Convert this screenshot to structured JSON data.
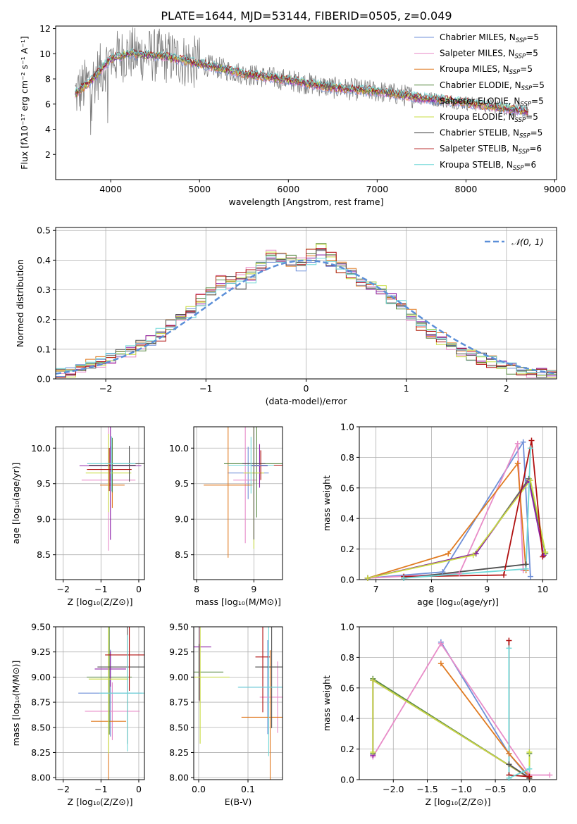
{
  "figure_title": "PLATE=1644, MJD=53144, FIBERID=0505, z=0.049",
  "colors": {
    "Chabrier MILES": "#6f8fd8",
    "Salpeter MILES": "#e88cc8",
    "Kroupa MILES": "#e07a20",
    "Chabrier ELODIE": "#5a8a44",
    "Salpeter ELODIE": "#8d20a8",
    "Kroupa ELODIE": "#c8dc40",
    "Chabrier STELIB": "#505050",
    "Salpeter STELIB": "#b01010",
    "Kroupa STELIB": "#70d8d8",
    "data": "#7f7f7f",
    "normal": "#5b8fd8"
  },
  "chart_data": [
    {
      "id": "spectrum",
      "type": "line",
      "xlabel": "wavelength [Angstrom, rest frame]",
      "ylabel": "Flux [fλ10⁻¹⁷ erg cm⁻² s⁻¹ A⁻¹]",
      "xlim": [
        3380,
        9020
      ],
      "ylim": [
        0.0,
        12.2
      ],
      "xticks": [
        4000,
        5000,
        6000,
        7000,
        8000,
        9000
      ],
      "yticks": [
        2,
        4,
        6,
        8,
        10,
        12
      ],
      "legend": [
        {
          "base": "Chabrier MILES, N",
          "sub": "SSP",
          "tail": "=5"
        },
        {
          "base": "Salpeter MILES, N",
          "sub": "SSP",
          "tail": "=5"
        },
        {
          "base": "Kroupa MILES, N",
          "sub": "SSP",
          "tail": "=5"
        },
        {
          "base": "Chabrier ELODIE, N",
          "sub": "SSP",
          "tail": "=5"
        },
        {
          "base": "Salpeter ELODIE, N",
          "sub": "SSP",
          "tail": "=5"
        },
        {
          "base": "Kroupa ELODIE, N",
          "sub": "SSP",
          "tail": "=5"
        },
        {
          "base": "Chabrier STELIB, N",
          "sub": "SSP",
          "tail": "=5"
        },
        {
          "base": "Salpeter STELIB, N",
          "sub": "SSP",
          "tail": "=6"
        },
        {
          "base": "Kroupa STELIB, N",
          "sub": "SSP",
          "tail": "=6"
        }
      ],
      "legend_position": "right",
      "continuum_x": [
        3600,
        3800,
        4000,
        4200,
        4400,
        4600,
        4800,
        5000,
        5200,
        5500,
        6000,
        6500,
        7000,
        7500,
        8000,
        8500,
        8700
      ],
      "continuum_y": [
        6.8,
        8.0,
        9.6,
        10.0,
        9.9,
        9.8,
        9.5,
        9.2,
        8.9,
        8.4,
        7.9,
        7.3,
        7.0,
        6.5,
        6.1,
        5.6,
        5.4
      ]
    },
    {
      "id": "residuals",
      "type": "bar",
      "xlabel": "(data-model)/error",
      "ylabel": "Normed distribution",
      "xlim": [
        -2.5,
        2.5
      ],
      "ylim": [
        0.0,
        0.51
      ],
      "xticks": [
        -2,
        -1,
        0,
        1,
        2
      ],
      "yticks": [
        0.0,
        0.1,
        0.2,
        0.3,
        0.4,
        0.5
      ],
      "legend": "𝒩(0, 1)",
      "legend_position": "upper right",
      "bin_width": 0.1,
      "bin_centers": [
        -2.45,
        -2.35,
        -2.25,
        -2.15,
        -2.05,
        -1.95,
        -1.85,
        -1.75,
        -1.65,
        -1.55,
        -1.45,
        -1.35,
        -1.25,
        -1.15,
        -1.05,
        -0.95,
        -0.85,
        -0.75,
        -0.65,
        -0.55,
        -0.45,
        -0.35,
        -0.25,
        -0.15,
        -0.05,
        0.05,
        0.15,
        0.25,
        0.35,
        0.45,
        0.55,
        0.65,
        0.75,
        0.85,
        0.95,
        1.05,
        1.15,
        1.25,
        1.35,
        1.45,
        1.55,
        1.65,
        1.75,
        1.85,
        1.95,
        2.05,
        2.15,
        2.25,
        2.35,
        2.45
      ],
      "series_values": [
        [
          0.02,
          0.03,
          0.04,
          0.05,
          0.06,
          0.07,
          0.09,
          0.1,
          0.12,
          0.13,
          0.16,
          0.19,
          0.21,
          0.22,
          0.25,
          0.29,
          0.31,
          0.33,
          0.32,
          0.34,
          0.38,
          0.4,
          0.41,
          0.39,
          0.38,
          0.4,
          0.42,
          0.39,
          0.38,
          0.36,
          0.33,
          0.31,
          0.29,
          0.27,
          0.25,
          0.22,
          0.19,
          0.16,
          0.14,
          0.12,
          0.1,
          0.08,
          0.07,
          0.06,
          0.05,
          0.04,
          0.03,
          0.03,
          0.02,
          0.02
        ],
        [
          0.01,
          0.02,
          0.03,
          0.04,
          0.05,
          0.06,
          0.08,
          0.09,
          0.11,
          0.12,
          0.14,
          0.18,
          0.2,
          0.24,
          0.27,
          0.3,
          0.34,
          0.32,
          0.35,
          0.37,
          0.39,
          0.43,
          0.41,
          0.42,
          0.4,
          0.42,
          0.44,
          0.41,
          0.37,
          0.35,
          0.34,
          0.32,
          0.3,
          0.26,
          0.24,
          0.21,
          0.18,
          0.15,
          0.13,
          0.11,
          0.09,
          0.08,
          0.06,
          0.05,
          0.04,
          0.03,
          0.03,
          0.02,
          0.02,
          0.01
        ]
      ],
      "normal_curve": "N(0,1) pdf"
    },
    {
      "id": "age_vs_Z",
      "type": "scatter",
      "xlabel": "Z [log₁₀(Z/Z⊙)]",
      "ylabel": "age  [log₁₀(age/yr)]",
      "xlim": [
        -2.2,
        0.15
      ],
      "ylim": [
        8.15,
        10.3
      ],
      "xticks": [
        -2,
        -1,
        0
      ],
      "yticks": [
        8.5,
        9.0,
        9.5,
        10.0
      ],
      "points": [
        [
          -0.75,
          9.78
        ],
        [
          -0.8,
          9.55
        ],
        [
          -0.7,
          9.48
        ],
        [
          -0.7,
          9.76
        ],
        [
          -0.75,
          9.75
        ],
        [
          -0.8,
          9.65
        ],
        [
          -0.25,
          9.78
        ],
        [
          -0.78,
          9.7
        ],
        [
          -0.72,
          9.78
        ]
      ]
    },
    {
      "id": "age_vs_mass",
      "type": "scatter",
      "xlabel": "mass [log₁₀(M/M⊙)]",
      "ylabel": "",
      "xlim": [
        7.95,
        9.5
      ],
      "ylim": [
        8.15,
        10.3
      ],
      "xticks": [
        8,
        9
      ],
      "yticks": [
        8.5,
        9.0,
        9.5,
        10.0
      ],
      "points": [
        [
          8.9,
          9.65
        ],
        [
          8.85,
          9.55
        ],
        [
          8.55,
          9.48
        ],
        [
          9.05,
          9.78
        ],
        [
          9.1,
          9.75
        ],
        [
          9.0,
          9.65
        ],
        [
          9.0,
          9.78
        ],
        [
          9.12,
          9.76
        ],
        [
          8.95,
          9.76
        ]
      ]
    },
    {
      "id": "weight_vs_age",
      "type": "line",
      "xlabel": "age  [log₁₀(age/yr)]",
      "ylabel": "mass weight",
      "xlim": [
        6.7,
        10.25
      ],
      "ylim": [
        0.0,
        1.0
      ],
      "xticks": [
        7,
        8,
        9,
        10
      ],
      "yticks": [
        0.0,
        0.2,
        0.4,
        0.6,
        0.8,
        1.0
      ],
      "series": [
        {
          "name": "Chabrier MILES",
          "x": [
            6.85,
            8.2,
            9.65,
            9.78
          ],
          "y": [
            0.01,
            0.05,
            0.9,
            0.02
          ]
        },
        {
          "name": "Salpeter MILES",
          "x": [
            6.85,
            8.5,
            9.55,
            9.65
          ],
          "y": [
            0.01,
            0.04,
            0.89,
            0.06
          ]
        },
        {
          "name": "Kroupa MILES",
          "x": [
            6.85,
            8.3,
            9.55,
            9.7
          ],
          "y": [
            0.01,
            0.17,
            0.76,
            0.06
          ]
        },
        {
          "name": "Chabrier ELODIE",
          "x": [
            6.85,
            8.8,
            9.75,
            10.05
          ],
          "y": [
            0.01,
            0.17,
            0.66,
            0.17
          ]
        },
        {
          "name": "Salpeter ELODIE",
          "x": [
            6.85,
            8.8,
            9.75,
            10.02
          ],
          "y": [
            0.01,
            0.17,
            0.65,
            0.16
          ]
        },
        {
          "name": "Kroupa ELODIE",
          "x": [
            6.85,
            8.75,
            9.78,
            10.05
          ],
          "y": [
            0.01,
            0.16,
            0.65,
            0.18
          ]
        },
        {
          "name": "Chabrier STELIB",
          "x": [
            7.5,
            9.7
          ],
          "y": [
            0.01,
            0.1
          ]
        },
        {
          "name": "Salpeter STELIB",
          "x": [
            7.5,
            9.3,
            9.8,
            10.0
          ],
          "y": [
            0.02,
            0.03,
            0.91,
            0.15
          ]
        },
        {
          "name": "Kroupa STELIB",
          "x": [
            7.5,
            9.7,
            9.78
          ],
          "y": [
            0.01,
            0.07,
            0.86
          ]
        }
      ]
    },
    {
      "id": "mass_vs_Z",
      "type": "scatter",
      "xlabel": "Z [log₁₀(Z/Z⊙)]",
      "ylabel": "mass [log₁₀(M/M⊙)]",
      "xlim": [
        -2.2,
        0.15
      ],
      "ylim": [
        7.98,
        9.5
      ],
      "xticks": [
        -2,
        -1,
        0
      ],
      "yticks": [
        8.0,
        8.25,
        8.5,
        8.75,
        9.0,
        9.25,
        9.5
      ],
      "points": [
        [
          -0.75,
          8.84
        ],
        [
          -0.7,
          8.66
        ],
        [
          -0.8,
          8.56
        ],
        [
          -0.78,
          9.0
        ],
        [
          -0.75,
          9.08
        ],
        [
          -0.8,
          8.98
        ],
        [
          -0.3,
          9.1
        ],
        [
          -0.25,
          9.22
        ],
        [
          -0.3,
          8.84
        ]
      ]
    },
    {
      "id": "mass_vs_ebv",
      "type": "scatter",
      "xlabel": "E(B-V)",
      "ylabel": "",
      "xlim": [
        -0.01,
        0.17
      ],
      "ylim": [
        7.98,
        9.5
      ],
      "xticks": [
        0.0,
        0.1
      ],
      "yticks": [
        8.0,
        8.25,
        8.5,
        8.75,
        9.0,
        9.25,
        9.5
      ],
      "points": [
        [
          0.14,
          8.9
        ],
        [
          0.16,
          8.8
        ],
        [
          0.145,
          8.6
        ],
        [
          0.001,
          9.05
        ],
        [
          0.002,
          9.3
        ],
        [
          0.003,
          9.0
        ],
        [
          0.148,
          9.1
        ],
        [
          0.13,
          9.2
        ],
        [
          0.142,
          8.9
        ]
      ]
    },
    {
      "id": "weight_vs_Z",
      "type": "line",
      "xlabel": "Z [log₁₀(Z/Z⊙)]",
      "ylabel": "mass weight",
      "xlim": [
        -2.5,
        0.4
      ],
      "ylim": [
        0.0,
        1.0
      ],
      "xticks": [
        -2.0,
        -1.5,
        -1.0,
        -0.5,
        0.0
      ],
      "yticks": [
        0.0,
        0.2,
        0.4,
        0.6,
        0.8,
        1.0
      ],
      "series": [
        {
          "name": "Chabrier MILES",
          "x": [
            -1.3,
            -0.3,
            0.0
          ],
          "y": [
            0.9,
            0.17,
            0.01
          ]
        },
        {
          "name": "Salpeter MILES",
          "x": [
            -2.3,
            -1.3,
            0.0,
            0.3
          ],
          "y": [
            0.15,
            0.89,
            0.03,
            0.03
          ]
        },
        {
          "name": "Kroupa MILES",
          "x": [
            -1.3,
            -0.3,
            0.0
          ],
          "y": [
            0.76,
            0.17,
            0.02
          ]
        },
        {
          "name": "Chabrier ELODIE",
          "x": [
            -2.3,
            -2.3,
            0.0,
            0.0
          ],
          "y": [
            0.17,
            0.66,
            0.01,
            0.17
          ]
        },
        {
          "name": "Salpeter ELODIE",
          "x": [
            -2.3,
            -2.3,
            0.0
          ],
          "y": [
            0.16,
            0.65,
            0.01
          ]
        },
        {
          "name": "Kroupa ELODIE",
          "x": [
            -2.3,
            -2.3,
            0.0,
            0.0
          ],
          "y": [
            0.18,
            0.65,
            0.01,
            0.18
          ]
        },
        {
          "name": "Chabrier STELIB",
          "x": [
            -0.3,
            0.0
          ],
          "y": [
            0.1,
            0.01
          ]
        },
        {
          "name": "Salpeter STELIB",
          "x": [
            -0.3,
            -0.3,
            0.0
          ],
          "y": [
            0.91,
            0.03,
            0.02
          ]
        },
        {
          "name": "Kroupa STELIB",
          "x": [
            -0.3,
            -0.3,
            0.0
          ],
          "y": [
            0.86,
            0.01,
            0.07
          ]
        }
      ]
    }
  ]
}
